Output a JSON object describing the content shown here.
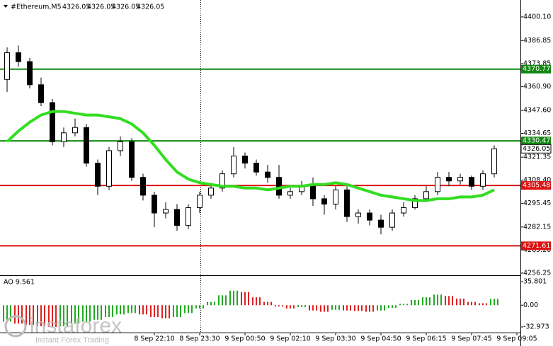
{
  "chart_data": {
    "type": "candlestick",
    "title": "#Ethereum,M5",
    "header_ohlc": [
      4326.05,
      4326.05,
      4326.05,
      4326.05
    ],
    "ylim": [
      4255.45,
      4409.6
    ],
    "yticks": [
      {
        "value": 4400.1,
        "label": "4400.10"
      },
      4386.85,
      4373.85,
      {
        "value": 4360.9,
        "label": "4360.90"
      },
      {
        "value": 4347.6,
        "label": "4347.60"
      },
      4334.65,
      4321.35,
      {
        "value": 4308.4,
        "label": "4308.40"
      },
      4295.45,
      4282.15,
      {
        "value": 4269.2,
        "label": "4269.20"
      },
      4256.25
    ],
    "xticks": [
      {
        "value": 13,
        "label": "8 Sep 22:10"
      },
      {
        "value": 17,
        "label": "8 Sep 23:30"
      },
      {
        "value": 21,
        "label": "9 Sep 00:50"
      },
      {
        "value": 25,
        "label": "9 Sep 02:10"
      },
      {
        "value": 29,
        "label": "9 Sep 03:30"
      },
      {
        "value": 33,
        "label": "9 Sep 04:50"
      },
      {
        "value": 37,
        "label": "9 Sep 06:15"
      },
      {
        "value": 41,
        "label": "9 Sep 07:45"
      },
      {
        "value": 45,
        "label": "9 Sep 09:05"
      }
    ],
    "open": [
      4365,
      4380,
      4375,
      4362,
      4352,
      4330,
      4335,
      4338,
      4318,
      4305,
      4325,
      4330,
      4310,
      4300,
      4290,
      4292,
      4283,
      4293,
      4300,
      4304,
      4312,
      4322,
      4318,
      4313,
      4310,
      4300,
      4302,
      4305,
      4298,
      4295,
      4303,
      4288,
      4290,
      4286,
      4282,
      4290,
      4293,
      4298,
      4302,
      4310,
      4308,
      4310,
      4305,
      4312
    ],
    "high": [
      4383,
      4384,
      4377,
      4366,
      4354,
      4338,
      4343,
      4340,
      4320,
      4327,
      4333,
      4332,
      4312,
      4302,
      4296,
      4295,
      4295,
      4302,
      4306,
      4314,
      4327,
      4324,
      4320,
      4317,
      4317,
      4304,
      4308,
      4310,
      4300,
      4305,
      4305,
      4292,
      4292,
      4289,
      4292,
      4296,
      4300,
      4305,
      4313,
      4313,
      4312,
      4311,
      4314,
      4328
    ],
    "low": [
      4358,
      4372,
      4360,
      4350,
      4328,
      4327,
      4333,
      4316,
      4300,
      4303,
      4322,
      4308,
      4297,
      4282,
      4287,
      4280,
      4281,
      4290,
      4298,
      4302,
      4310,
      4315,
      4311,
      4307,
      4298,
      4298,
      4300,
      4294,
      4289,
      4292,
      4285,
      4284,
      4283,
      4278,
      4280,
      4288,
      4292,
      4296,
      4300,
      4305,
      4306,
      4303,
      4303,
      4310
    ],
    "close": [
      4380,
      4375,
      4362,
      4352,
      4330,
      4335,
      4338,
      4318,
      4305,
      4325,
      4330,
      4310,
      4300,
      4290,
      4292,
      4283,
      4293,
      4300,
      4304,
      4312,
      4322,
      4318,
      4313,
      4310,
      4300,
      4302,
      4305,
      4298,
      4295,
      4303,
      4288,
      4290,
      4286,
      4282,
      4290,
      4293,
      4298,
      4302,
      4310,
      4308,
      4310,
      4305,
      4312,
      4326.05
    ],
    "up_color": "#ffffff",
    "down_color": "#000000",
    "moving_average": {
      "color": "#33dd22",
      "values": [
        4330,
        4336,
        4341,
        4345,
        4347,
        4347,
        4346,
        4345,
        4345,
        4344,
        4343,
        4340,
        4335,
        4328,
        4320,
        4313,
        4309,
        4307,
        4306,
        4305,
        4305,
        4304,
        4304,
        4303,
        4304,
        4305,
        4305,
        4306,
        4306,
        4307,
        4306,
        4304,
        4302,
        4300,
        4299,
        4298,
        4297,
        4297,
        4298,
        4298,
        4299,
        4299,
        4300,
        4303
      ]
    },
    "levels": [
      {
        "value": 4370.77,
        "color": "#118811"
      },
      {
        "value": 4330.47,
        "color": "#118811"
      },
      {
        "value": 4305.48,
        "color": "#dd1111"
      },
      {
        "value": 4271.61,
        "color": "#dd1111"
      }
    ],
    "last_price": 4326.05,
    "indicator": {
      "name": "AO 9.561",
      "ylim": [
        -41.57,
        42.25
      ],
      "yticks": [
        35.801,
        {
          "value": 0,
          "label": "0.00"
        },
        -32.973
      ],
      "up_color": "#22aa22",
      "down_color": "#dd2222",
      "values": [
        -25,
        -28,
        -30,
        -32,
        -33,
        -32,
        -28,
        -25,
        -22,
        -18,
        -14,
        -12,
        -14,
        -18,
        -20,
        -18,
        -12,
        -5,
        5,
        15,
        22,
        20,
        12,
        5,
        -2,
        -5,
        -3,
        -8,
        -10,
        -7,
        -8,
        -9,
        -10,
        -8,
        -4,
        2,
        8,
        12,
        16,
        14,
        10,
        5,
        3,
        9.561
      ]
    },
    "watermark": {
      "brand": "instaforex",
      "tagline": "Instant Forex Trading"
    }
  }
}
